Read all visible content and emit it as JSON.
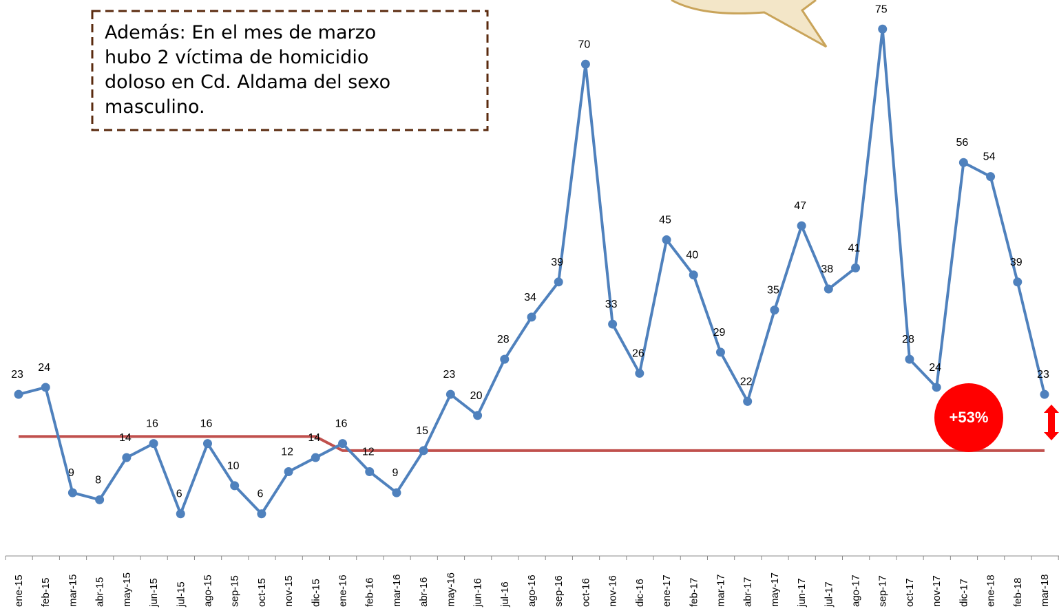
{
  "chart_data": {
    "type": "line",
    "categories": [
      "ene-15",
      "feb-15",
      "mar-15",
      "abr-15",
      "may-15",
      "jun-15",
      "jul-15",
      "ago-15",
      "sep-15",
      "oct-15",
      "nov-15",
      "dic-15",
      "ene-16",
      "feb-16",
      "mar-16",
      "abr-16",
      "may-16",
      "jun-16",
      "jul-16",
      "ago-16",
      "sep-16",
      "oct-16",
      "nov-16",
      "dic-16",
      "ene-17",
      "feb-17",
      "mar-17",
      "abr-17",
      "may-17",
      "jun-17",
      "jul-17",
      "ago-17",
      "sep-17",
      "oct-17",
      "nov-17",
      "dic-17",
      "ene-18",
      "feb-18",
      "mar-18"
    ],
    "series": [
      {
        "color": "#4f81bd",
        "values": [
          23,
          24,
          9,
          8,
          14,
          16,
          6,
          16,
          10,
          6,
          12,
          14,
          16,
          12,
          9,
          15,
          23,
          20,
          28,
          34,
          39,
          70,
          33,
          26,
          45,
          40,
          29,
          22,
          35,
          47,
          38,
          41,
          75,
          28,
          24,
          56,
          54,
          39,
          23
        ]
      },
      {
        "color": "#c0504d",
        "values": [
          17,
          17,
          17,
          17,
          17,
          17,
          17,
          17,
          17,
          17,
          17,
          17,
          15,
          15,
          15,
          15,
          15,
          15,
          15,
          15,
          15,
          15,
          15,
          15,
          15,
          15,
          15,
          15,
          15,
          15,
          15,
          15,
          15,
          15,
          15,
          15,
          15,
          15,
          15
        ]
      }
    ],
    "ylim": [
      0,
      80
    ],
    "annotation": [
      "Además: En el mes de marzo",
      "hubo 2 víctima de homicidio",
      "doloso en Cd. Aldama del sexo",
      "masculino."
    ],
    "badge": "+53%",
    "badge_color": "#ff0000"
  }
}
